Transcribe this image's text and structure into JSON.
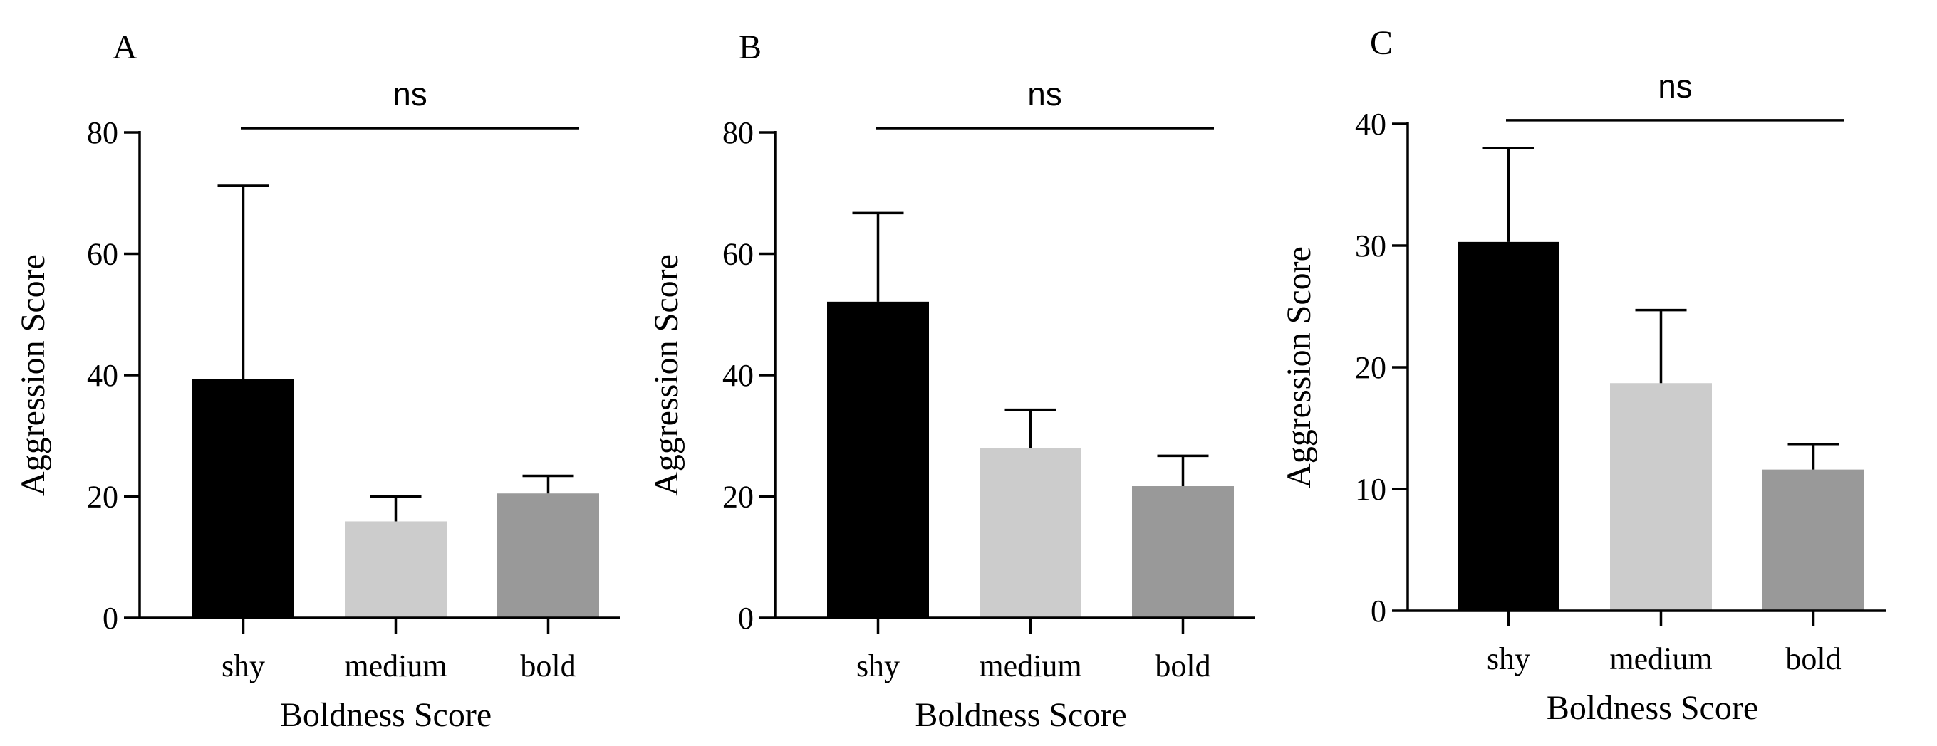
{
  "chart_data": [
    {
      "panel": "A",
      "type": "bar",
      "categories": [
        "shy",
        "medium",
        "bold"
      ],
      "values": [
        39.3,
        15.9,
        20.5
      ],
      "error_upper": [
        71.2,
        20.0,
        23.4
      ],
      "colors": [
        "#000000",
        "#cccccc",
        "#999999"
      ],
      "xlabel": "Boldness Score",
      "ylabel": "Aggression Score",
      "ylim": [
        0,
        80
      ],
      "yticks": [
        0,
        20,
        40,
        60,
        80
      ],
      "significance": {
        "label": "ns",
        "y": 80.7,
        "from": 0,
        "to": 2
      },
      "grid": false
    },
    {
      "panel": "B",
      "type": "bar",
      "categories": [
        "shy",
        "medium",
        "bold"
      ],
      "values": [
        52.1,
        28.0,
        21.7
      ],
      "error_upper": [
        66.7,
        34.3,
        26.7
      ],
      "colors": [
        "#000000",
        "#cccccc",
        "#999999"
      ],
      "xlabel": "Boldness Score",
      "ylabel": "Aggression Score",
      "ylim": [
        0,
        80
      ],
      "yticks": [
        0,
        20,
        40,
        60,
        80
      ],
      "significance": {
        "label": "ns",
        "y": 80.7,
        "from": 0,
        "to": 2
      },
      "grid": false
    },
    {
      "panel": "C",
      "type": "bar",
      "categories": [
        "shy",
        "medium",
        "bold"
      ],
      "values": [
        30.3,
        18.7,
        11.6
      ],
      "error_upper": [
        38.0,
        24.7,
        13.7
      ],
      "colors": [
        "#000000",
        "#cccccc",
        "#999999"
      ],
      "xlabel": "Boldness Score",
      "ylabel": "Aggression Score",
      "ylim": [
        0,
        40
      ],
      "yticks": [
        0,
        10,
        20,
        30,
        40
      ],
      "significance": {
        "label": "ns",
        "y": 40.3,
        "from": 0,
        "to": 2
      },
      "grid": false
    }
  ]
}
